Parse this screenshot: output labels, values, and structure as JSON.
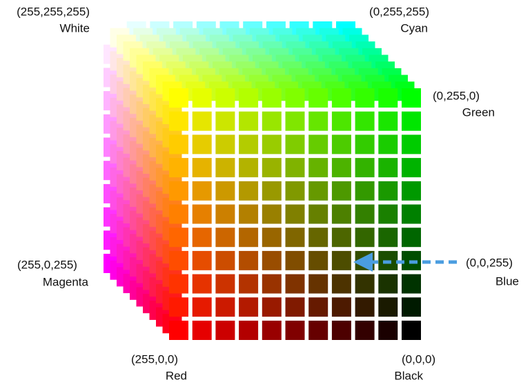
{
  "corners": [
    {
      "rgb": "(255,255,255)",
      "name": "White"
    },
    {
      "rgb": "(0,255,255)",
      "name": "Cyan"
    },
    {
      "rgb": "(0,255,0)",
      "name": "Green"
    },
    {
      "rgb": "(255,0,255)",
      "name": "Magenta"
    },
    {
      "rgb": "(0,0,255)",
      "name": "Blue"
    },
    {
      "rgb": "(255,0,0)",
      "name": "Red"
    },
    {
      "rgb": "(0,0,0)",
      "name": "Black"
    }
  ]
}
